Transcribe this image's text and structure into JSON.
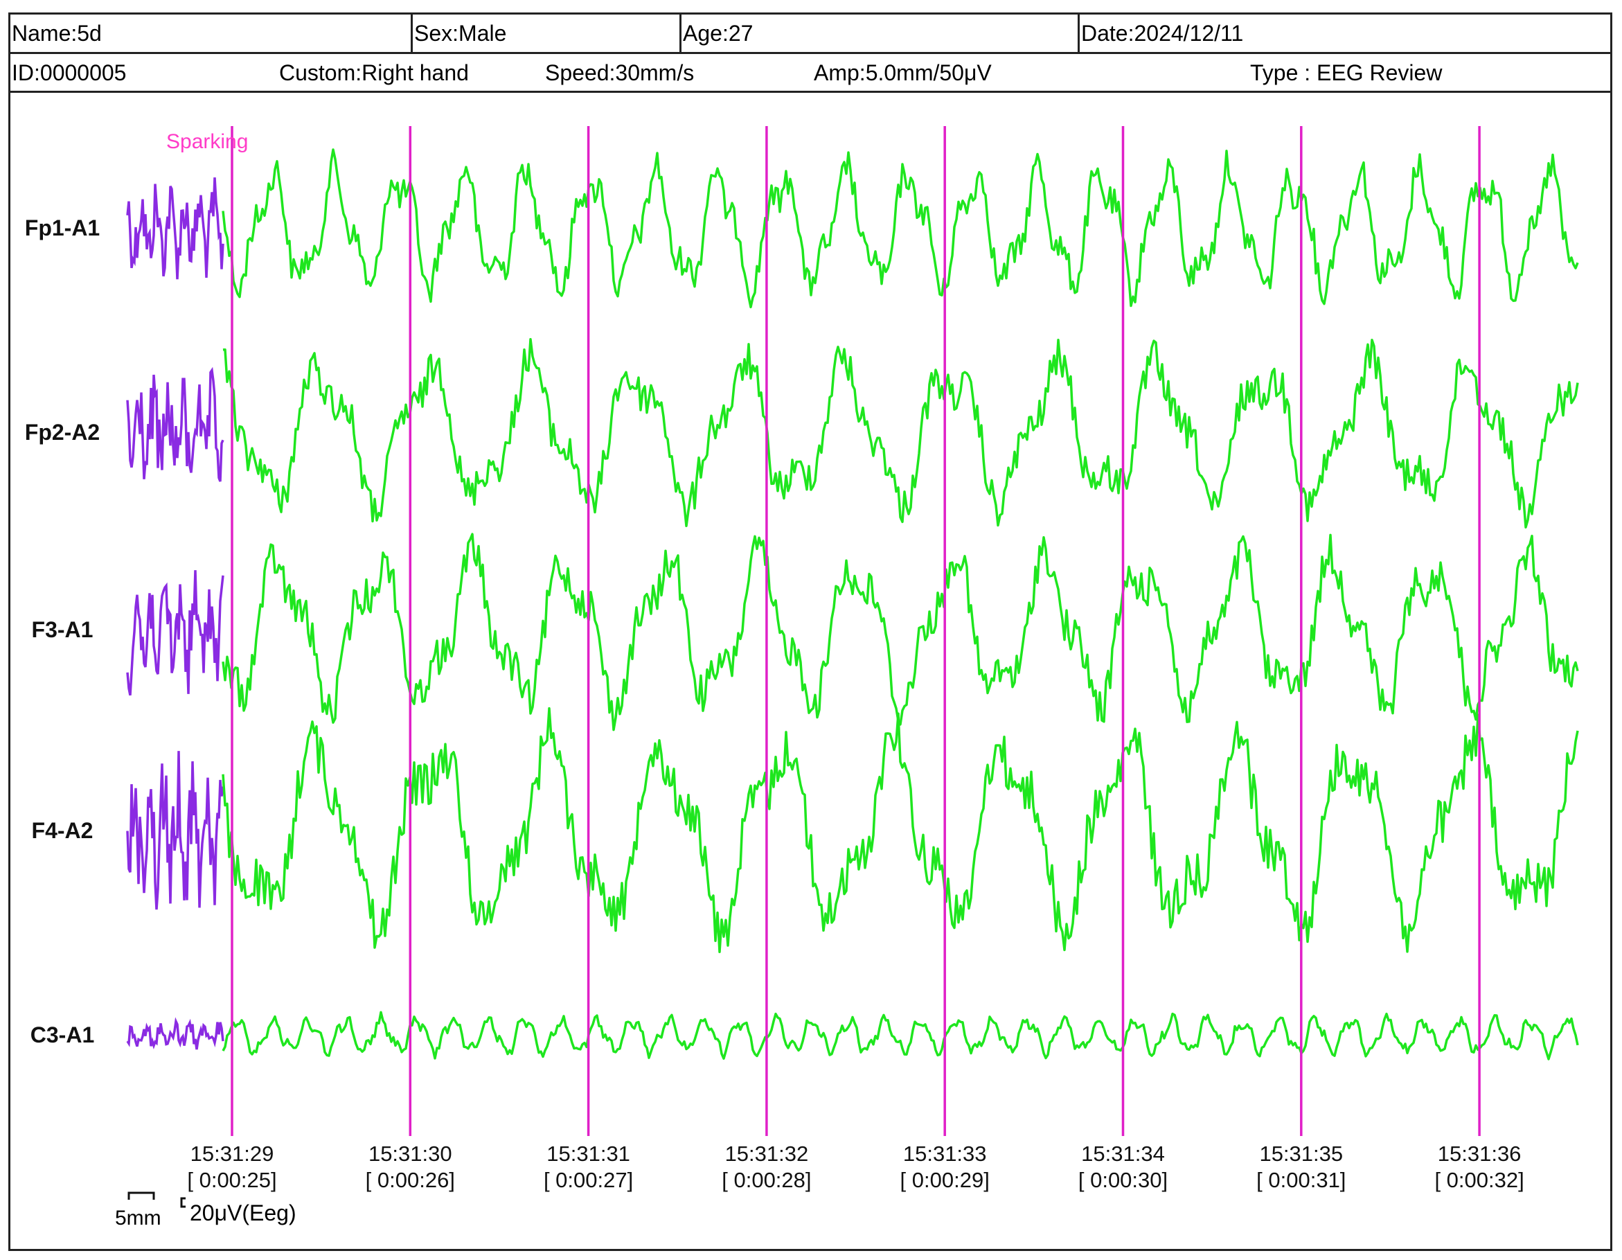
{
  "header": {
    "name": "Name:5d",
    "sex": "Sex:Male",
    "age": "Age:27",
    "date": "Date:2024/12/11",
    "id": "ID:0000005",
    "custom": "Custom:Right hand",
    "speed": "Speed:30mm/s",
    "amp": "Amp:5.0mm/50μV",
    "type": "Type : EEG Review"
  },
  "colors": {
    "trace": "#1ee61e",
    "reference_trace": "#8a2be2",
    "markers": "#e020c8",
    "annotation": "#ff3cc8",
    "text": "#111111"
  },
  "chart_data": {
    "type": "line",
    "annotation": "Sparking",
    "channels": [
      "Fp1-A1",
      "Fp2-A2",
      "F3-A1",
      "F4-A2",
      "C3-A1"
    ],
    "time_ticks": [
      {
        "clock": "15:31:29",
        "elapsed": "[ 0:00:25]"
      },
      {
        "clock": "15:31:30",
        "elapsed": "[ 0:00:26]"
      },
      {
        "clock": "15:31:31",
        "elapsed": "[ 0:00:27]"
      },
      {
        "clock": "15:31:32",
        "elapsed": "[ 0:00:28]"
      },
      {
        "clock": "15:31:33",
        "elapsed": "[ 0:00:29]"
      },
      {
        "clock": "15:31:34",
        "elapsed": "[ 0:00:30]"
      },
      {
        "clock": "15:31:35",
        "elapsed": "[ 0:00:31]"
      },
      {
        "clock": "15:31:36",
        "elapsed": "[ 0:00:32]"
      }
    ],
    "scale_bar": {
      "time": "5mm",
      "amplitude": "20μV(Eeg)"
    },
    "grid": false,
    "marker_lines": "one per second"
  }
}
